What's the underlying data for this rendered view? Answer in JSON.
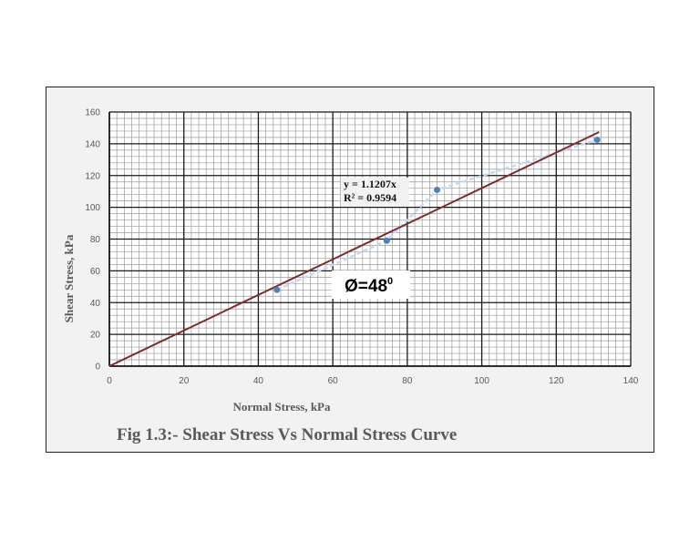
{
  "chart_data": {
    "type": "scatter",
    "title": "",
    "xlabel": "Normal Stress, kPa",
    "ylabel": "Shear Stress, kPa",
    "xlim": [
      0,
      140
    ],
    "ylim": [
      0,
      160
    ],
    "x_ticks": [
      "0",
      "20",
      "40",
      "60",
      "80",
      "100",
      "120",
      "140"
    ],
    "y_ticks": [
      "0",
      "20",
      "40",
      "60",
      "80",
      "100",
      "120",
      "140",
      "160"
    ],
    "grid": true,
    "series": [
      {
        "points": [
          {
            "x": 45,
            "y": 48
          },
          {
            "x": 74.5,
            "y": 79
          },
          {
            "x": 88,
            "y": 111
          },
          {
            "x": 131,
            "y": 142.5
          }
        ],
        "color": "#4f81bd"
      }
    ],
    "connector_color": "#c6d9f1",
    "trendline": {
      "slope": 1.1207,
      "intercept": 0,
      "x_range": [
        0,
        131.5
      ],
      "color": "#7b2c2c",
      "equation": "y = 1.1207x",
      "r_squared": "R² = 0.9594"
    },
    "annotations": {
      "phi_label": "Ø=48",
      "phi_superscript": "0"
    },
    "caption": "Fig 1.3:- Shear Stress Vs Normal Stress Curve"
  }
}
